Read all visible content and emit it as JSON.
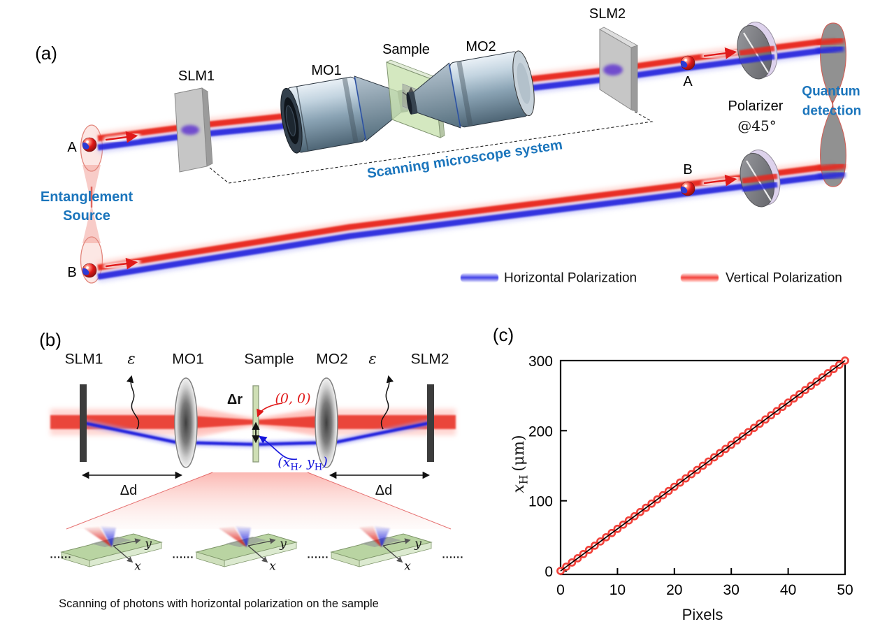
{
  "figure": {
    "background": "#ffffff"
  },
  "colors": {
    "accent_blue": "#1b75bc",
    "beam_red": "#e8281e",
    "beam_blue": "#2727dd",
    "marker_red": "#f2413a",
    "sample_green": "#cbe3b2"
  },
  "panel_a": {
    "tag": "(a)",
    "slm1": "SLM1",
    "mo1": "MO1",
    "sample": "Sample",
    "mo2": "MO2",
    "slm2": "SLM2",
    "photon_a": "A",
    "photon_b": "B",
    "source_line1": "Entanglement",
    "source_line2": "Source",
    "system_label": "Scanning microscope system",
    "polarizer_line1": "Polarizer",
    "polarizer_line2": "@45°",
    "detection_line1": "Quantum",
    "detection_line2": "detection",
    "legend": [
      {
        "label": "Horizontal Polarization",
        "color": "#4141e8"
      },
      {
        "label": "Vertical Polarization",
        "color": "#f2413a"
      }
    ]
  },
  "panel_b": {
    "tag": "(b)",
    "slm1": "SLM1",
    "mo1": "MO1",
    "sample": "Sample",
    "mo2": "MO2",
    "slm2": "SLM2",
    "epsilon": "ε",
    "delta_r": "Δr",
    "delta_d": "Δd",
    "origin": "(0, 0)",
    "xh": {
      "open": "(",
      "v1": "x",
      "s1": "H",
      "mid": ", ",
      "v2": "y",
      "s2": "H",
      "close": ")"
    },
    "dots": "......",
    "axis_x": "x",
    "axis_y": "y",
    "caption": "Scanning of photons with horizontal polarization on the sample"
  },
  "panel_c": {
    "tag": "(c)"
  },
  "chart_data": {
    "type": "scatter",
    "title": "",
    "xlabel": "Pixels",
    "ylabel": "xH (μm)",
    "ylabel_parts": {
      "var": "x",
      "sub": "H",
      "units": "(μm)"
    },
    "xlim": [
      0,
      50
    ],
    "ylim": [
      0,
      300
    ],
    "xticks": [
      0,
      10,
      20,
      30,
      40,
      50
    ],
    "yticks": [
      0,
      100,
      200,
      300
    ],
    "grid": false,
    "legend_position": "none",
    "marker_color": "#f2413a",
    "marker_fill": "#ffe7e5",
    "line_color": "#000000",
    "x": [
      0,
      1,
      2,
      3,
      4,
      5,
      6,
      7,
      8,
      9,
      10,
      11,
      12,
      13,
      14,
      15,
      16,
      17,
      18,
      19,
      20,
      21,
      22,
      23,
      24,
      25,
      26,
      27,
      28,
      29,
      30,
      31,
      32,
      33,
      34,
      35,
      36,
      37,
      38,
      39,
      40,
      41,
      42,
      43,
      44,
      45,
      46,
      47,
      48,
      49,
      50
    ],
    "y": [
      0,
      6,
      12,
      18,
      24,
      30,
      36,
      42,
      48,
      54,
      60,
      66,
      72,
      78,
      84,
      90,
      96,
      102,
      108,
      114,
      120,
      126,
      132,
      138,
      144,
      150,
      156,
      162,
      168,
      174,
      180,
      186,
      192,
      198,
      204,
      210,
      216,
      222,
      228,
      234,
      240,
      246,
      252,
      258,
      264,
      270,
      276,
      282,
      288,
      294,
      300
    ],
    "fit": {
      "x": [
        0,
        50
      ],
      "y": [
        0,
        300
      ]
    }
  }
}
